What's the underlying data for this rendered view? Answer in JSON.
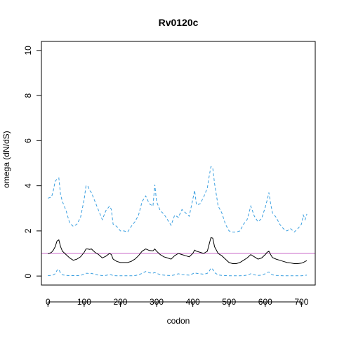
{
  "chart_data": {
    "type": "line",
    "title": "Rv0120c",
    "xlabel": "codon",
    "ylabel": "omega (dN/dS)",
    "xlim": [
      -18,
      738
    ],
    "ylim": [
      -0.4,
      10.4
    ],
    "x_ticks": [
      0,
      100,
      200,
      300,
      400,
      500,
      600,
      700
    ],
    "y_ticks": [
      0,
      2,
      4,
      6,
      8,
      10
    ],
    "grid": false,
    "reference_line": {
      "y": 1,
      "color": "#c969c9"
    },
    "series": [
      {
        "style": "dashed",
        "color": "#3a9fe0",
        "x": [
          0,
          10,
          15,
          20,
          25,
          30,
          35,
          40,
          50,
          60,
          70,
          80,
          90,
          100,
          105,
          110,
          115,
          120,
          130,
          140,
          150,
          160,
          170,
          175,
          180,
          190,
          200,
          210,
          220,
          230,
          240,
          250,
          260,
          270,
          280,
          290,
          295,
          300,
          310,
          320,
          330,
          340,
          350,
          360,
          370,
          380,
          390,
          400,
          405,
          410,
          420,
          430,
          440,
          445,
          450,
          455,
          460,
          470,
          480,
          490,
          500,
          510,
          520,
          530,
          540,
          550,
          560,
          570,
          580,
          590,
          600,
          605,
          610,
          615,
          620,
          630,
          640,
          650,
          660,
          670,
          680,
          690,
          700,
          705,
          710,
          715
        ],
        "y": [
          3.45,
          3.5,
          3.8,
          4.2,
          4.3,
          4.35,
          3.6,
          3.3,
          2.9,
          2.35,
          2.2,
          2.3,
          2.6,
          3.4,
          4.0,
          4.0,
          3.8,
          3.7,
          3.3,
          2.9,
          2.5,
          2.9,
          3.1,
          2.95,
          2.3,
          2.2,
          2.0,
          2.0,
          1.95,
          2.2,
          2.4,
          2.7,
          3.3,
          3.55,
          3.2,
          3.1,
          4.05,
          3.3,
          2.9,
          2.75,
          2.5,
          2.25,
          2.7,
          2.6,
          2.95,
          2.8,
          2.65,
          3.4,
          3.8,
          3.15,
          3.2,
          3.5,
          3.9,
          4.4,
          4.85,
          4.8,
          4.1,
          3.1,
          2.8,
          2.3,
          2.0,
          1.95,
          1.95,
          2.0,
          2.3,
          2.5,
          3.1,
          2.65,
          2.4,
          2.55,
          3.05,
          3.35,
          3.7,
          3.2,
          2.8,
          2.6,
          2.3,
          2.1,
          2.0,
          2.1,
          1.95,
          2.1,
          2.3,
          2.7,
          2.5,
          2.75
        ]
      },
      {
        "style": "solid",
        "color": "#000000",
        "x": [
          0,
          10,
          15,
          20,
          25,
          30,
          35,
          40,
          50,
          60,
          70,
          80,
          90,
          100,
          105,
          110,
          115,
          120,
          130,
          140,
          150,
          160,
          170,
          175,
          180,
          190,
          200,
          210,
          220,
          230,
          240,
          250,
          260,
          270,
          280,
          290,
          295,
          300,
          310,
          320,
          330,
          340,
          350,
          360,
          370,
          380,
          390,
          400,
          405,
          410,
          420,
          430,
          440,
          445,
          450,
          455,
          460,
          470,
          480,
          490,
          500,
          510,
          520,
          530,
          540,
          550,
          560,
          570,
          580,
          590,
          600,
          605,
          610,
          615,
          620,
          630,
          640,
          650,
          660,
          670,
          680,
          690,
          700,
          705,
          710,
          715
        ],
        "y": [
          0.98,
          1.05,
          1.15,
          1.3,
          1.55,
          1.6,
          1.3,
          1.1,
          0.95,
          0.8,
          0.7,
          0.75,
          0.85,
          1.05,
          1.2,
          1.2,
          1.18,
          1.2,
          1.05,
          0.95,
          0.8,
          0.88,
          1.0,
          0.95,
          0.75,
          0.65,
          0.6,
          0.6,
          0.6,
          0.65,
          0.75,
          0.9,
          1.1,
          1.2,
          1.13,
          1.12,
          1.2,
          1.1,
          0.95,
          0.85,
          0.8,
          0.75,
          0.9,
          1.0,
          0.95,
          0.9,
          0.85,
          1.0,
          1.15,
          1.1,
          1.05,
          1.0,
          1.1,
          1.4,
          1.7,
          1.68,
          1.3,
          1.0,
          0.9,
          0.75,
          0.6,
          0.55,
          0.55,
          0.6,
          0.7,
          0.8,
          0.95,
          0.85,
          0.75,
          0.8,
          0.95,
          1.05,
          1.1,
          0.95,
          0.82,
          0.75,
          0.7,
          0.65,
          0.6,
          0.58,
          0.55,
          0.55,
          0.57,
          0.6,
          0.65,
          0.68
        ]
      },
      {
        "style": "dashed",
        "color": "#3a9fe0",
        "x": [
          0,
          10,
          15,
          20,
          25,
          30,
          35,
          40,
          50,
          60,
          70,
          80,
          90,
          100,
          105,
          110,
          115,
          120,
          130,
          140,
          150,
          160,
          170,
          175,
          180,
          190,
          200,
          210,
          220,
          230,
          240,
          250,
          260,
          270,
          280,
          290,
          295,
          300,
          310,
          320,
          330,
          340,
          350,
          360,
          370,
          380,
          390,
          400,
          405,
          410,
          420,
          430,
          440,
          445,
          450,
          455,
          460,
          470,
          480,
          490,
          500,
          510,
          520,
          530,
          540,
          550,
          560,
          570,
          580,
          590,
          600,
          605,
          610,
          615,
          620,
          630,
          640,
          650,
          660,
          670,
          680,
          690,
          700,
          705,
          710,
          715
        ],
        "y": [
          0.02,
          0.03,
          0.05,
          0.1,
          0.25,
          0.3,
          0.12,
          0.05,
          0.03,
          0.02,
          0.02,
          0.02,
          0.03,
          0.08,
          0.12,
          0.12,
          0.1,
          0.12,
          0.07,
          0.04,
          0.02,
          0.03,
          0.06,
          0.05,
          0.02,
          0.01,
          0.01,
          0.01,
          0.01,
          0.01,
          0.02,
          0.05,
          0.12,
          0.2,
          0.14,
          0.13,
          0.15,
          0.12,
          0.06,
          0.04,
          0.03,
          0.02,
          0.05,
          0.1,
          0.06,
          0.05,
          0.04,
          0.1,
          0.15,
          0.12,
          0.1,
          0.08,
          0.12,
          0.2,
          0.35,
          0.3,
          0.15,
          0.05,
          0.03,
          0.02,
          0.01,
          0.01,
          0.01,
          0.01,
          0.02,
          0.04,
          0.1,
          0.05,
          0.03,
          0.04,
          0.1,
          0.15,
          0.18,
          0.1,
          0.05,
          0.03,
          0.02,
          0.01,
          0.01,
          0.01,
          0.01,
          0.01,
          0.01,
          0.02,
          0.03,
          0.04
        ]
      }
    ]
  }
}
